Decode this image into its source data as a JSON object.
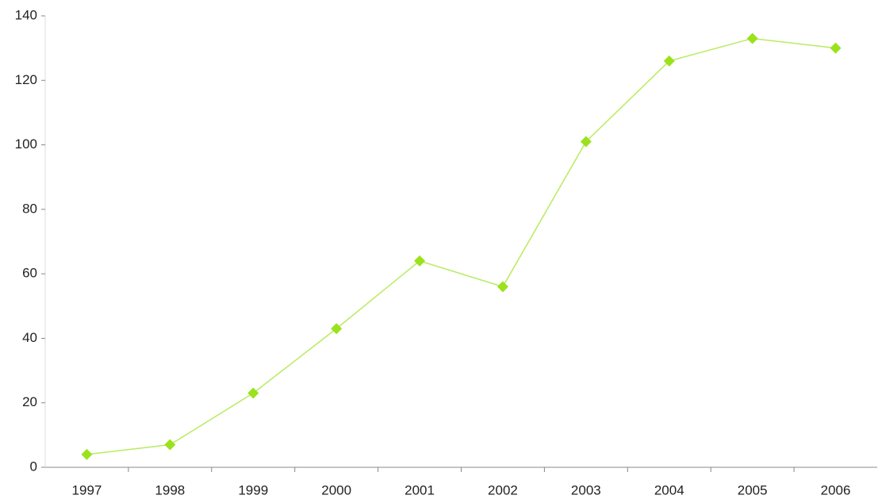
{
  "chart_data": {
    "type": "line",
    "categories": [
      "1997",
      "1998",
      "1999",
      "2000",
      "2001",
      "2002",
      "2003",
      "2004",
      "2005",
      "2006"
    ],
    "values": [
      4,
      7,
      23,
      43,
      64,
      56,
      101,
      126,
      133,
      130
    ],
    "color": "#9be21c",
    "ylim": [
      0,
      140
    ],
    "yticks": [
      0,
      20,
      40,
      60,
      80,
      100,
      120,
      140
    ],
    "grid": false
  }
}
